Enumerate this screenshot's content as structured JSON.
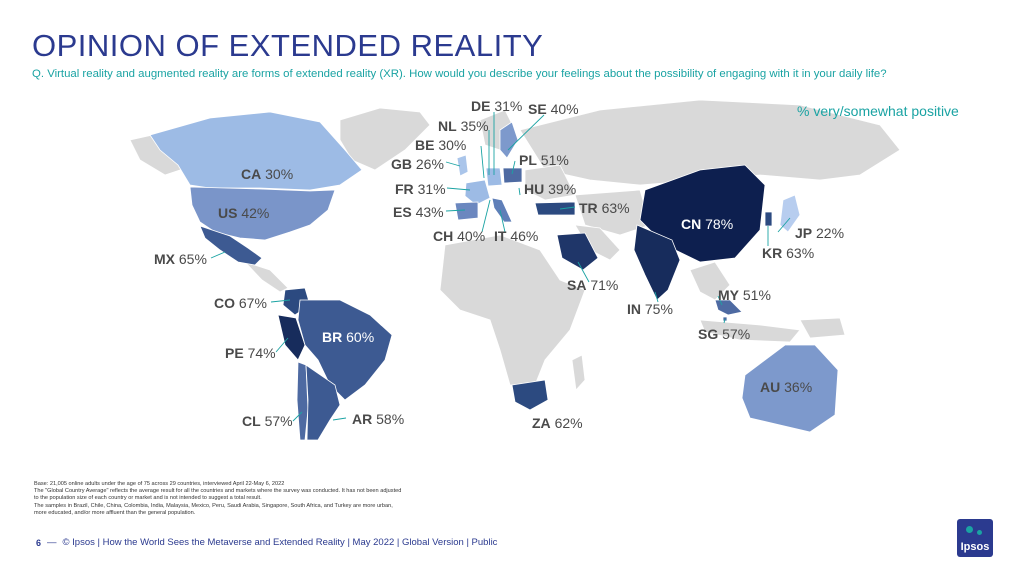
{
  "title": "OPINION OF EXTENDED REALITY",
  "question": "Q. Virtual reality and augmented reality are forms of extended reality (XR). How would you describe your feelings about the possibility of engaging with it in your daily life?",
  "legend_note": "% very/somewhat positive",
  "colors": {
    "title": "#2b3a8f",
    "accent": "#1aa3a3",
    "land_no_data": "#d9d9d9",
    "scale_low": "#9dbbe5",
    "scale_mid": "#5f7fb8",
    "scale_high": "#0d1f4f"
  },
  "countries": [
    {
      "code": "DE",
      "value": "31%"
    },
    {
      "code": "SE",
      "value": "40%"
    },
    {
      "code": "NL",
      "value": "35%"
    },
    {
      "code": "BE",
      "value": "30%"
    },
    {
      "code": "GB",
      "value": "26%"
    },
    {
      "code": "PL",
      "value": "51%"
    },
    {
      "code": "FR",
      "value": "31%"
    },
    {
      "code": "HU",
      "value": "39%"
    },
    {
      "code": "ES",
      "value": "43%"
    },
    {
      "code": "TR",
      "value": "63%"
    },
    {
      "code": "CH",
      "value": "40%"
    },
    {
      "code": "IT",
      "value": "46%"
    },
    {
      "code": "CA",
      "value": "30%"
    },
    {
      "code": "US",
      "value": "42%"
    },
    {
      "code": "MX",
      "value": "65%"
    },
    {
      "code": "CO",
      "value": "67%"
    },
    {
      "code": "BR",
      "value": "60%"
    },
    {
      "code": "PE",
      "value": "74%"
    },
    {
      "code": "CL",
      "value": "57%"
    },
    {
      "code": "AR",
      "value": "58%"
    },
    {
      "code": "SA",
      "value": "71%"
    },
    {
      "code": "ZA",
      "value": "62%"
    },
    {
      "code": "CN",
      "value": "78%"
    },
    {
      "code": "IN",
      "value": "75%"
    },
    {
      "code": "JP",
      "value": "22%"
    },
    {
      "code": "KR",
      "value": "63%"
    },
    {
      "code": "MY",
      "value": "51%"
    },
    {
      "code": "SG",
      "value": "57%"
    },
    {
      "code": "AU",
      "value": "36%"
    }
  ],
  "base_notes": [
    "Base: 21,005 online adults under the age of 75 across 29 countries, interviewed April 22-May 6, 2022",
    "The \"Global Country Average\" reflects the average result for all the countries and markets where the survey was conducted. It has not been adjusted to the population size of each country or market and is not intended to suggest a total result.",
    "The samples in Brazil, Chile, China, Colombia, India, Malaysia, Mexico, Peru, Saudi Arabia, Singapore, South Africa, and Turkey are more urban, more educated, and/or more affluent than the general population."
  ],
  "footer": {
    "page": "6",
    "text": "© Ipsos | How the World Sees the Metaverse and Extended Reality | May 2022 | Global Version | Public"
  },
  "logo": "Ipsos"
}
